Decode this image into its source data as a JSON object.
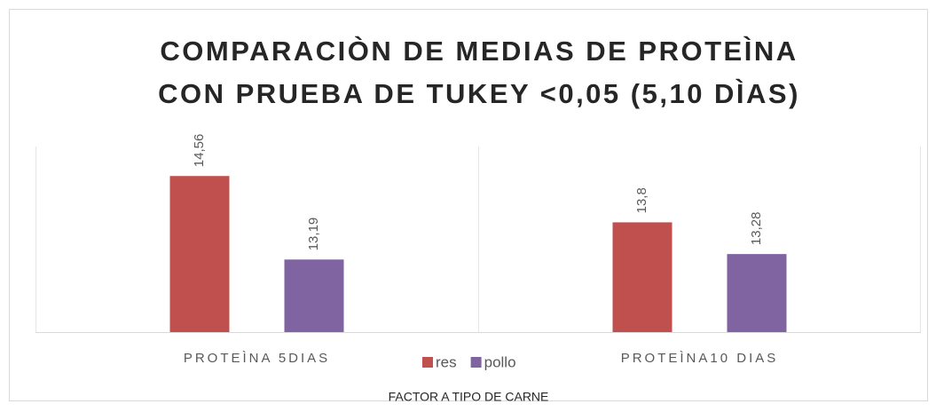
{
  "chart_data": {
    "type": "bar",
    "title": [
      "COMPARACIÒN DE MEDIAS DE PROTEÌNA",
      "CON PRUEBA DE TUKEY <0,05 (5,10 DÌAS)"
    ],
    "x_label": "FACTOR A TIPO DE CARNE",
    "categories": [
      "PROTEÌNA 5DIAS",
      "PROTEÌNA10 DIAS"
    ],
    "series": [
      {
        "name": "res",
        "color": "#c0504d",
        "values": [
          14.56,
          13.8
        ],
        "value_labels": [
          "14,56",
          "13,8"
        ]
      },
      {
        "name": "pollo",
        "color": "#8064a2",
        "values": [
          13.19,
          13.28
        ],
        "value_labels": [
          "13,19",
          "13,28"
        ]
      }
    ],
    "ylim": [
      12,
      15
    ],
    "legend": "bottom"
  }
}
